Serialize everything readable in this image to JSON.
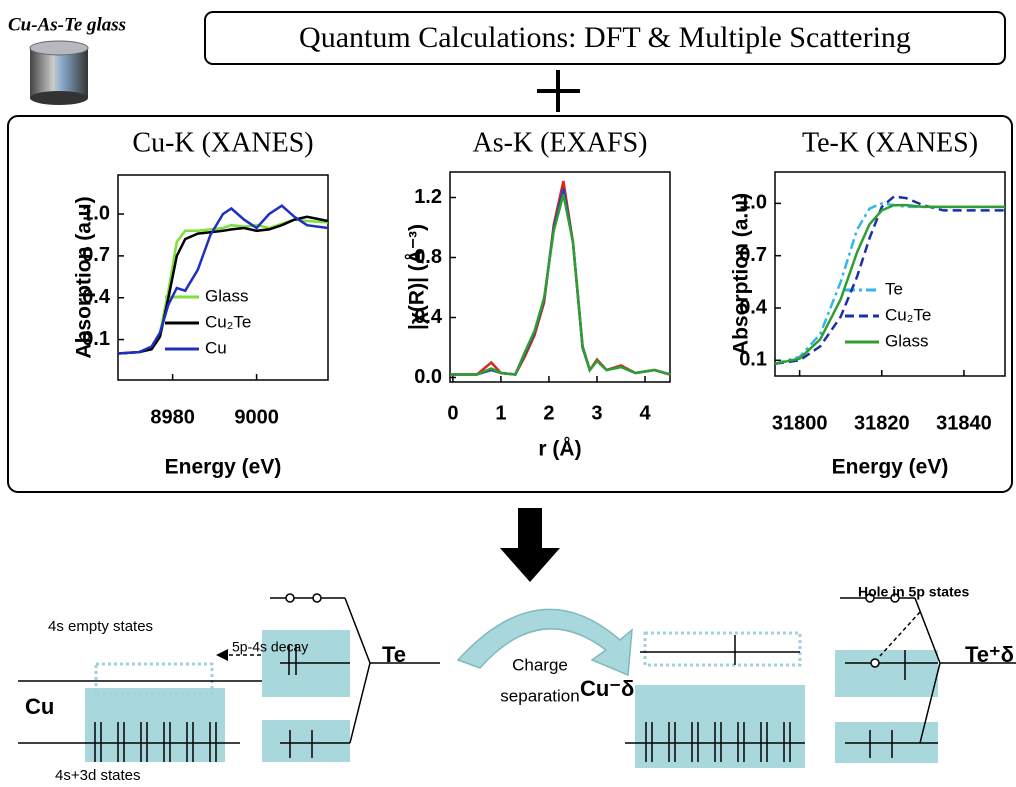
{
  "header": {
    "sample": "Cu-As-Te glass",
    "title": "Quantum Calculations: DFT & Multiple Scattering"
  },
  "chart_data": [
    {
      "type": "line",
      "title": "Cu-K (XANES)",
      "x_label": "Energy (eV)",
      "y_label": "Absorption (a.u)",
      "xlim": [
        8967,
        9017
      ],
      "ylim": [
        -0.19,
        1.28
      ],
      "xticks": [
        8980,
        9000
      ],
      "yticks": [
        0.1,
        0.4,
        0.7,
        {
          "value": 1,
          "label": "1.0"
        }
      ],
      "legend": "lower right",
      "x": [
        8967,
        8972,
        8975,
        8977,
        8979,
        8981,
        8983,
        8986,
        8989,
        8992,
        8994,
        8997,
        9000,
        9003,
        9006,
        9009,
        9012,
        9017
      ],
      "series": [
        {
          "name": "Glass",
          "color": "#7ee03a",
          "dash": "solid",
          "values": [
            0.0,
            0.01,
            0.04,
            0.15,
            0.45,
            0.8,
            0.88,
            0.88,
            0.89,
            0.9,
            0.92,
            0.91,
            0.92,
            0.9,
            0.93,
            0.96,
            0.95,
            0.94
          ]
        },
        {
          "name": "Cu₂Te",
          "color": "#000000",
          "dash": "solid",
          "values": [
            0.0,
            0.01,
            0.03,
            0.12,
            0.4,
            0.7,
            0.82,
            0.86,
            0.87,
            0.88,
            0.89,
            0.9,
            0.88,
            0.89,
            0.92,
            0.96,
            0.98,
            0.95
          ]
        },
        {
          "name": "Cu",
          "color": "#1f2fbf",
          "dash": "solid",
          "values": [
            0.0,
            0.01,
            0.05,
            0.15,
            0.35,
            0.47,
            0.45,
            0.6,
            0.85,
            1.0,
            1.04,
            0.96,
            0.9,
            1.0,
            1.06,
            0.98,
            0.92,
            0.9
          ]
        }
      ]
    },
    {
      "type": "line",
      "title": "As-K (EXAFS)",
      "x_label": "r (Å)",
      "y_label": "|χ(R)| (Å⁻³)",
      "xlim": [
        -0.06,
        4.52
      ],
      "ylim": [
        -0.03,
        1.37
      ],
      "xticks": [
        0,
        1,
        2,
        3,
        4
      ],
      "yticks": [
        {
          "value": 0,
          "label": "0.0"
        },
        0.4,
        0.8,
        1.2
      ],
      "x": [
        -0.06,
        0.5,
        0.8,
        1.0,
        1.3,
        1.5,
        1.7,
        1.9,
        2.1,
        2.3,
        2.5,
        2.7,
        2.85,
        3.0,
        3.2,
        3.5,
        3.8,
        4.2,
        4.52
      ],
      "series": [
        {
          "color": "#d42a1e",
          "values": [
            0.02,
            0.02,
            0.1,
            0.03,
            0.02,
            0.14,
            0.28,
            0.5,
            1.02,
            1.31,
            0.9,
            0.2,
            0.05,
            0.12,
            0.05,
            0.08,
            0.03,
            0.05,
            0.02
          ]
        },
        {
          "color": "#2a3fc0",
          "values": [
            0.02,
            0.02,
            0.05,
            0.03,
            0.02,
            0.16,
            0.3,
            0.52,
            1.0,
            1.26,
            0.9,
            0.2,
            0.05,
            0.11,
            0.05,
            0.07,
            0.03,
            0.05,
            0.02
          ]
        },
        {
          "color": "#2e9e2e",
          "values": [
            0.02,
            0.02,
            0.06,
            0.03,
            0.02,
            0.17,
            0.31,
            0.53,
            0.98,
            1.22,
            0.9,
            0.21,
            0.05,
            0.11,
            0.05,
            0.07,
            0.03,
            0.05,
            0.02
          ]
        }
      ]
    },
    {
      "type": "line",
      "title": "Te-K (XANES)",
      "x_label": "Energy (eV)",
      "y_label": "Absorption (a.u)",
      "xlim": [
        31794,
        31850
      ],
      "ylim": [
        0.01,
        1.18
      ],
      "xticks": [
        31800,
        31820,
        31840
      ],
      "yticks": [
        0.1,
        0.4,
        0.7,
        {
          "value": 1,
          "label": "1.0"
        }
      ],
      "legend": "lower right",
      "x": [
        31794,
        31800,
        31805,
        31810,
        31814,
        31817,
        31820,
        31823,
        31826,
        31830,
        31835,
        31840,
        31850
      ],
      "series": [
        {
          "name": "Te",
          "color": "#35b6e8",
          "dash": "dashdot",
          "values": [
            0.08,
            0.12,
            0.25,
            0.55,
            0.85,
            0.97,
            1.0,
            0.99,
            0.98,
            0.98,
            0.98,
            0.98,
            0.98
          ]
        },
        {
          "name": "Cu₂Te",
          "color": "#1a2fa8",
          "dash": "dashed",
          "values": [
            0.08,
            0.1,
            0.18,
            0.35,
            0.58,
            0.8,
            0.98,
            1.04,
            1.03,
            0.99,
            0.96,
            0.96,
            0.96
          ]
        },
        {
          "name": "Glass",
          "color": "#2e9e2e",
          "dash": "solid",
          "values": [
            0.08,
            0.11,
            0.22,
            0.45,
            0.72,
            0.88,
            0.96,
            0.99,
            0.99,
            0.98,
            0.98,
            0.98,
            0.98
          ]
        }
      ]
    }
  ],
  "diagram": {
    "cu_empty": "4s empty states",
    "decay": "5p-4s decay",
    "cu": "Cu",
    "cu_states": "4s+3d states",
    "te": "Te",
    "transfer": [
      "Charge",
      "separation"
    ],
    "cu_charged": "Cu⁻δ",
    "hole": "Hole in 5p states",
    "te_charged": "Te⁺δ"
  }
}
